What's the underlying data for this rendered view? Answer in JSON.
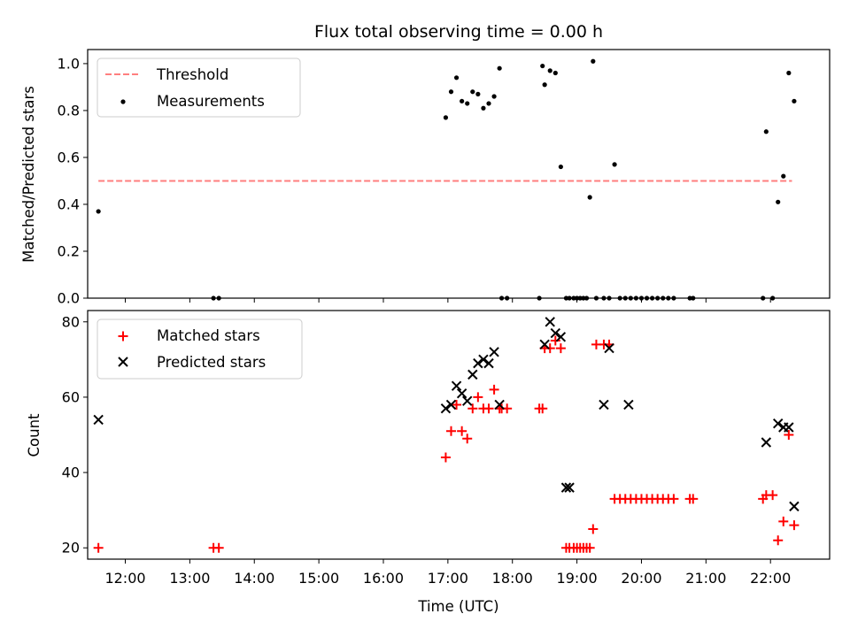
{
  "chart_data": [
    {
      "type": "scatter",
      "title": "Flux total observing time = 0.00 h",
      "xlabel": "",
      "ylabel": "Matched/Predicted stars",
      "xlim": [
        "11:25",
        "22:55"
      ],
      "ylim": [
        0,
        1.06
      ],
      "yticks": [
        0.0,
        0.2,
        0.4,
        0.6,
        0.8,
        1.0
      ],
      "ytick_labels": [
        "0.0",
        "0.2",
        "0.4",
        "0.6",
        "0.8",
        "1.0"
      ],
      "grid": false,
      "legend_position": "upper left",
      "series": [
        {
          "name": "Threshold",
          "style": "dashed-line",
          "color": "#ff7f7f",
          "x": [
            "11:35",
            "22:20"
          ],
          "y": [
            0.5,
            0.5
          ]
        },
        {
          "name": "Measurements",
          "style": "dot",
          "color": "#000000",
          "x": [
            "11:35",
            "13:22",
            "13:27",
            "16:58",
            "17:03",
            "17:08",
            "17:13",
            "17:18",
            "17:23",
            "17:28",
            "17:33",
            "17:38",
            "17:43",
            "17:48",
            "17:50",
            "17:55",
            "18:25",
            "18:28",
            "18:30",
            "18:35",
            "18:40",
            "18:45",
            "18:50",
            "18:53",
            "18:57",
            "19:00",
            "19:03",
            "19:06",
            "19:09",
            "19:12",
            "19:15",
            "19:18",
            "19:25",
            "19:30",
            "19:35",
            "19:40",
            "19:45",
            "19:50",
            "19:55",
            "20:00",
            "20:05",
            "20:10",
            "20:15",
            "20:20",
            "20:25",
            "20:30",
            "20:45",
            "20:48",
            "21:53",
            "21:56",
            "22:02",
            "22:07",
            "22:12",
            "22:17",
            "22:22"
          ],
          "y": [
            0.37,
            0.0,
            0.0,
            0.77,
            0.88,
            0.94,
            0.84,
            0.83,
            0.88,
            0.87,
            0.81,
            0.83,
            0.86,
            0.98,
            0.0,
            0.0,
            0.0,
            0.99,
            0.91,
            0.97,
            0.96,
            0.56,
            0.0,
            0.0,
            0.0,
            0.0,
            0.0,
            0.0,
            0.0,
            0.43,
            1.01,
            0.0,
            0.0,
            0.0,
            0.57,
            0.0,
            0.0,
            0.0,
            0.0,
            0.0,
            0.0,
            0.0,
            0.0,
            0.0,
            0.0,
            0.0,
            0.0,
            0.0,
            0.0,
            0.71,
            0.0,
            0.41,
            0.52,
            0.96,
            0.84
          ]
        }
      ]
    },
    {
      "type": "scatter",
      "title": "",
      "xlabel": "Time (UTC)",
      "ylabel": "Count",
      "xlim": [
        "11:25",
        "22:55"
      ],
      "ylim": [
        17,
        83
      ],
      "yticks": [
        20,
        40,
        60,
        80
      ],
      "ytick_labels": [
        "20",
        "40",
        "60",
        "80"
      ],
      "xticks": [
        "12:00",
        "13:00",
        "14:00",
        "15:00",
        "16:00",
        "17:00",
        "18:00",
        "19:00",
        "20:00",
        "21:00",
        "22:00"
      ],
      "grid": false,
      "legend_position": "upper left",
      "series": [
        {
          "name": "Matched stars",
          "style": "plus",
          "color": "#ff0000",
          "x": [
            "11:35",
            "13:22",
            "13:27",
            "16:58",
            "17:03",
            "17:08",
            "17:13",
            "17:18",
            "17:23",
            "17:28",
            "17:33",
            "17:38",
            "17:43",
            "17:48",
            "17:50",
            "17:55",
            "18:25",
            "18:28",
            "18:30",
            "18:35",
            "18:40",
            "18:45",
            "18:50",
            "18:53",
            "18:57",
            "19:00",
            "19:03",
            "19:06",
            "19:09",
            "19:12",
            "19:15",
            "19:18",
            "19:25",
            "19:30",
            "19:35",
            "19:40",
            "19:45",
            "19:50",
            "19:55",
            "20:00",
            "20:05",
            "20:10",
            "20:15",
            "20:20",
            "20:25",
            "20:30",
            "20:45",
            "20:48",
            "21:53",
            "21:56",
            "22:02",
            "22:07",
            "22:12",
            "22:17",
            "22:22"
          ],
          "y": [
            20,
            20,
            20,
            44,
            51,
            58,
            51,
            49,
            57,
            60,
            57,
            57,
            62,
            57,
            57,
            57,
            57,
            57,
            73,
            73,
            75,
            73,
            20,
            20,
            20,
            20,
            20,
            20,
            20,
            20,
            25,
            74,
            74,
            74,
            33,
            33,
            33,
            33,
            33,
            33,
            33,
            33,
            33,
            33,
            33,
            33,
            33,
            33,
            33,
            34,
            34,
            22,
            27,
            50,
            26
          ]
        },
        {
          "name": "Predicted stars",
          "style": "x",
          "color": "#000000",
          "x": [
            "11:35",
            "16:58",
            "17:03",
            "17:08",
            "17:13",
            "17:18",
            "17:23",
            "17:28",
            "17:33",
            "17:38",
            "17:43",
            "17:48",
            "18:30",
            "18:35",
            "18:40",
            "18:45",
            "18:50",
            "18:53",
            "19:25",
            "19:30",
            "19:48",
            "21:56",
            "22:07",
            "22:12",
            "22:17",
            "22:22"
          ],
          "y": [
            54,
            57,
            58,
            63,
            61,
            59,
            66,
            69,
            70,
            69,
            72,
            58,
            74,
            80,
            77,
            76,
            36,
            36,
            58,
            73,
            58,
            48,
            53,
            52,
            52,
            31
          ]
        }
      ]
    }
  ],
  "top_legend": {
    "threshold_label": "Threshold",
    "measurements_label": "Measurements"
  },
  "bottom_legend": {
    "matched_label": "Matched stars",
    "predicted_label": "Predicted stars"
  }
}
